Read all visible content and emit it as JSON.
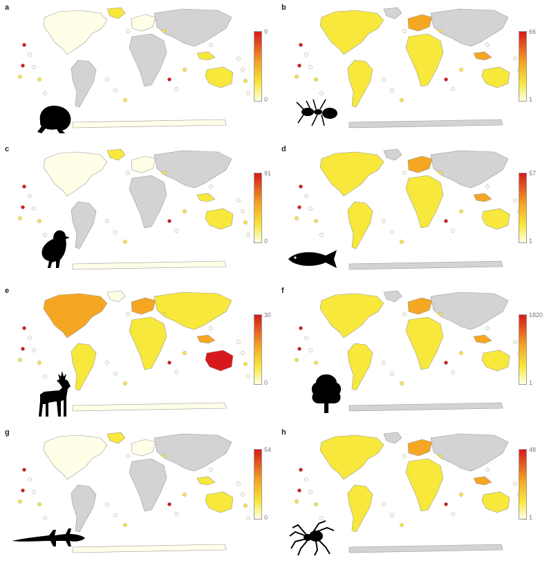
{
  "colors": {
    "high": "#d7191c",
    "mid": "#f5a623",
    "low": "#f7e83b",
    "min": "#ffffe8",
    "no_data": "#d3d3d3",
    "border": "#9a9a9a"
  },
  "panels": [
    {
      "letter": "a",
      "max": "9",
      "min": "0",
      "taxon": "frog",
      "fill": "light"
    },
    {
      "letter": "b",
      "max": "66",
      "min": "1",
      "taxon": "ant",
      "fill": "medium"
    },
    {
      "letter": "c",
      "max": "91",
      "min": "0",
      "taxon": "bird",
      "fill": "light"
    },
    {
      "letter": "d",
      "max": "57",
      "min": "1",
      "taxon": "fish",
      "fill": "medium"
    },
    {
      "letter": "e",
      "max": "30",
      "min": "0",
      "taxon": "deer",
      "fill": "heavy"
    },
    {
      "letter": "f",
      "max": "1820",
      "min": "1",
      "taxon": "tree",
      "fill": "medium"
    },
    {
      "letter": "g",
      "max": "54",
      "min": "0",
      "taxon": "lizard",
      "fill": "light"
    },
    {
      "letter": "h",
      "max": "48",
      "min": "1",
      "taxon": "spider",
      "fill": "medium"
    }
  ]
}
